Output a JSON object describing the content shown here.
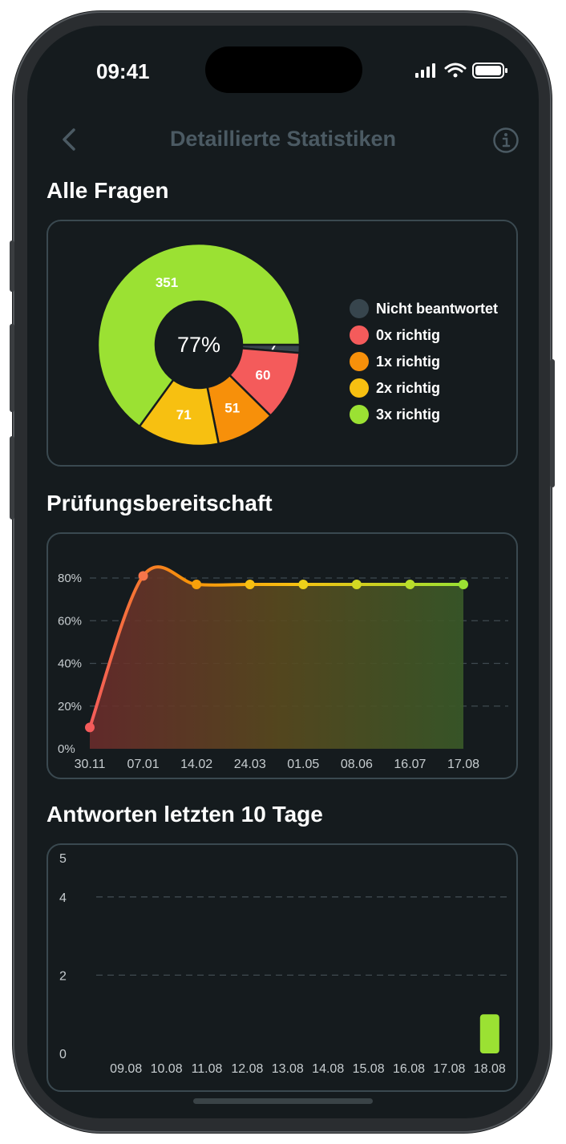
{
  "status": {
    "time": "09:41"
  },
  "nav": {
    "title": "Detaillierte Statistiken"
  },
  "colors": {
    "background": "#151b1e",
    "card_border": "#3a4950",
    "not_answered": "#37454d",
    "zero_correct": "#f45b5b",
    "one_correct": "#f7900a",
    "two_correct": "#f7c011",
    "three_correct": "#9be133"
  },
  "all_questions": {
    "title": "Alle Fragen",
    "center_label": "77%",
    "legend": [
      {
        "label": "Nicht beantwortet",
        "color": "#37454d"
      },
      {
        "label": "0x richtig",
        "color": "#f45b5b"
      },
      {
        "label": "1x richtig",
        "color": "#f7900a"
      },
      {
        "label": "2x richtig",
        "color": "#f7c011"
      },
      {
        "label": "3x richtig",
        "color": "#9be133"
      }
    ]
  },
  "readiness": {
    "title": "Prüfungsbereitschaft"
  },
  "answers": {
    "title": "Antworten letzten 10 Tage"
  },
  "chart_data": [
    {
      "type": "pie",
      "title": "Alle Fragen",
      "categories": [
        "Nicht beantwortet",
        "0x richtig",
        "1x richtig",
        "2x richtig",
        "3x richtig"
      ],
      "values": [
        7,
        60,
        51,
        71,
        351
      ],
      "value_labels": [
        "7",
        "60",
        "51",
        "71",
        "351"
      ],
      "center_label": "77%"
    },
    {
      "type": "area",
      "title": "Prüfungsbereitschaft",
      "x": [
        "30.11",
        "07.01",
        "14.02",
        "24.03",
        "01.05",
        "08.06",
        "16.07",
        "17.08"
      ],
      "y": [
        10,
        81,
        77,
        77,
        77,
        77,
        77,
        77
      ],
      "y_ticks": [
        "0%",
        "20%",
        "40%",
        "60%",
        "80%"
      ],
      "ylim": [
        0,
        100
      ],
      "grid": true
    },
    {
      "type": "bar",
      "title": "Antworten letzten 10 Tage",
      "categories": [
        "09.08",
        "10.08",
        "11.08",
        "12.08",
        "13.08",
        "14.08",
        "15.08",
        "16.08",
        "17.08",
        "18.08"
      ],
      "values": [
        0,
        0,
        0,
        0,
        0,
        0,
        0,
        0,
        0,
        1
      ],
      "y_ticks": [
        "0",
        "2",
        "4",
        "5"
      ],
      "ylim": [
        0,
        5
      ],
      "grid": true
    }
  ]
}
